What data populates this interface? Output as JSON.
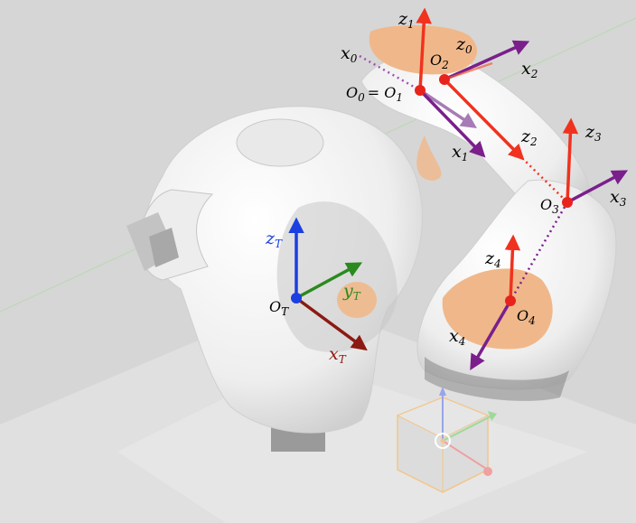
{
  "colors": {
    "background": "#d6d6d6",
    "robot_body": "#f3f3f3",
    "robot_shade": "#c9c9c9",
    "joint_cap": "#f0b88a",
    "z_axis": "#f0321e",
    "x_axis": "#7a1f8c",
    "origin": "#e8231c",
    "tool_z": "#1b3fe0",
    "tool_y": "#2a8a1e",
    "tool_x": "#8b1a12",
    "gizmo": "#f2c689"
  },
  "frames": {
    "z1": {
      "main": "z",
      "sub": "1",
      "color": "z_axis"
    },
    "z0": {
      "main": "z",
      "sub": "0",
      "color": "z_axis"
    },
    "x0": {
      "main": "x",
      "sub": "0",
      "color": "x_axis"
    },
    "o2": {
      "main": "O",
      "sub": "2",
      "color": "text"
    },
    "x2": {
      "main": "x",
      "sub": "2",
      "color": "x_axis"
    },
    "o01": {
      "main": "O",
      "sub": "0",
      "eq": "= O",
      "sub2": "1",
      "color": "text"
    },
    "z2": {
      "main": "z",
      "sub": "2",
      "color": "z_axis"
    },
    "x1": {
      "main": "x",
      "sub": "1",
      "color": "x_axis"
    },
    "z3": {
      "main": "z",
      "sub": "3",
      "color": "z_axis"
    },
    "x3": {
      "main": "x",
      "sub": "3",
      "color": "x_axis"
    },
    "o3": {
      "main": "O",
      "sub": "3",
      "color": "text"
    },
    "z4": {
      "main": "z",
      "sub": "4",
      "color": "z_axis"
    },
    "o4": {
      "main": "O",
      "sub": "4",
      "color": "text"
    },
    "x4": {
      "main": "x",
      "sub": "4",
      "color": "x_axis"
    },
    "zT": {
      "main": "z",
      "sub": "T",
      "color": "tool_z"
    },
    "yT": {
      "main": "y",
      "sub": "T",
      "color": "tool_y"
    },
    "oT": {
      "main": "O",
      "sub": "T",
      "color": "text"
    },
    "xT": {
      "main": "x",
      "sub": "T",
      "color": "tool_x"
    }
  }
}
